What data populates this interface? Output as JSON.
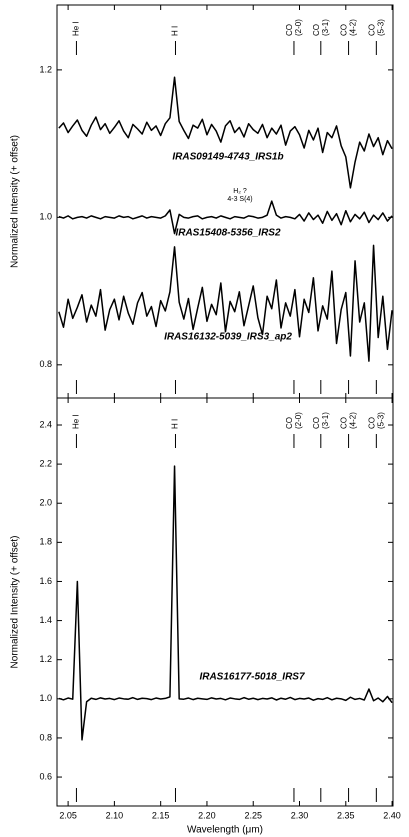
{
  "chart_data": [
    {
      "type": "line",
      "ylabel": "Normalized Intensity (+ offset)",
      "x": [
        2.04,
        2.045,
        2.05,
        2.055,
        2.06,
        2.065,
        2.07,
        2.075,
        2.08,
        2.085,
        2.09,
        2.095,
        2.1,
        2.105,
        2.11,
        2.115,
        2.12,
        2.125,
        2.13,
        2.135,
        2.14,
        2.145,
        2.15,
        2.155,
        2.16,
        2.165,
        2.17,
        2.175,
        2.18,
        2.185,
        2.19,
        2.195,
        2.2,
        2.205,
        2.21,
        2.215,
        2.22,
        2.225,
        2.23,
        2.235,
        2.24,
        2.245,
        2.25,
        2.255,
        2.26,
        2.265,
        2.27,
        2.275,
        2.28,
        2.285,
        2.29,
        2.295,
        2.3,
        2.305,
        2.31,
        2.315,
        2.32,
        2.325,
        2.33,
        2.335,
        2.34,
        2.345,
        2.35,
        2.355,
        2.36,
        2.365,
        2.37,
        2.375,
        2.38,
        2.385,
        2.39,
        2.395,
        2.4
      ],
      "series": [
        {
          "name": "IRAS09149-4743_IRS1b",
          "color": "#000000",
          "values": [
            1.121,
            1.128,
            1.115,
            1.124,
            1.132,
            1.118,
            1.11,
            1.125,
            1.136,
            1.119,
            1.127,
            1.114,
            1.122,
            1.131,
            1.117,
            1.108,
            1.126,
            1.12,
            1.113,
            1.129,
            1.118,
            1.124,
            1.111,
            1.127,
            1.135,
            1.19,
            1.13,
            1.118,
            1.107,
            1.125,
            1.121,
            1.133,
            1.112,
            1.126,
            1.117,
            1.102,
            1.124,
            1.131,
            1.115,
            1.122,
            1.109,
            1.127,
            1.119,
            1.114,
            1.126,
            1.108,
            1.121,
            1.113,
            1.125,
            1.098,
            1.117,
            1.123,
            1.112,
            1.094,
            1.118,
            1.105,
            1.121,
            1.088,
            1.115,
            1.108,
            1.124,
            1.097,
            1.082,
            1.04,
            1.075,
            1.102,
            1.09,
            1.113,
            1.096,
            1.108,
            1.085,
            1.104,
            1.093
          ]
        },
        {
          "name": "IRAS15408-5356_IRS2",
          "color": "#000000",
          "values": [
            1.001,
            0.999,
            1.002,
            0.998,
            1.0,
            1.001,
            0.999,
            1.002,
            1.0,
            0.998,
            1.001,
            1.0,
            0.999,
            1.002,
            1.0,
            1.001,
            0.998,
            1.0,
            1.002,
            0.999,
            1.001,
            1.0,
            0.999,
            1.002,
            1.01,
            0.978,
            1.004,
            1.0,
            0.999,
            1.001,
            1.002,
            0.998,
            1.0,
            1.001,
            0.999,
            1.002,
            1.0,
            0.998,
            1.001,
            1.0,
            0.999,
            1.002,
            1.001,
            0.999,
            1.0,
            1.003,
            1.022,
            1.003,
            0.999,
            1.001,
            1.0,
            0.998,
            1.004,
            0.995,
            1.006,
            0.997,
            1.003,
            0.992,
            1.008,
            0.996,
            1.005,
            0.99,
            1.009,
            0.994,
            1.004,
            0.998,
            1.007,
            0.993,
            1.003,
            0.997,
            1.006,
            0.995,
            1.002
          ]
        },
        {
          "name": "IRAS16132-5039_IRS3_ap2",
          "color": "#000000",
          "values": [
            0.872,
            0.851,
            0.889,
            0.863,
            0.878,
            0.895,
            0.858,
            0.881,
            0.866,
            0.902,
            0.847,
            0.875,
            0.889,
            0.861,
            0.893,
            0.87,
            0.855,
            0.884,
            0.898,
            0.866,
            0.879,
            0.852,
            0.887,
            0.873,
            0.899,
            0.96,
            0.885,
            0.862,
            0.89,
            0.848,
            0.877,
            0.905,
            0.859,
            0.882,
            0.868,
            0.911,
            0.845,
            0.886,
            0.872,
            0.899,
            0.853,
            0.88,
            0.907,
            0.864,
            0.841,
            0.893,
            0.876,
            0.915,
            0.85,
            0.884,
            0.866,
            0.902,
            0.838,
            0.889,
            0.871,
            0.918,
            0.846,
            0.88,
            0.862,
            0.927,
            0.829,
            0.875,
            0.898,
            0.812,
            0.941,
            0.858,
            0.884,
            0.805,
            0.962,
            0.837,
            0.893,
            0.821,
            0.874
          ]
        }
      ],
      "annotations": [
        "H₂ ?",
        "4-3 S(4)"
      ],
      "line_markers": [
        {
          "label": "He I",
          "wavelength": 2.059
        },
        {
          "label": "H I",
          "wavelength": 2.166
        },
        {
          "label": "CO",
          "transition": "(2-0)",
          "wavelength": 2.294
        },
        {
          "label": "CO",
          "transition": "(3-1)",
          "wavelength": 2.323
        },
        {
          "label": "CO",
          "transition": "(4-2)",
          "wavelength": 2.353
        },
        {
          "label": "CO",
          "transition": "(5-3)",
          "wavelength": 2.383
        }
      ],
      "xlim": [
        2.038,
        2.401
      ],
      "ylim": [
        0.755,
        1.288
      ],
      "yticks": [
        0.8,
        {
          "value": 1,
          "label": "1.0"
        },
        1.2
      ]
    },
    {
      "type": "line",
      "ylabel": "Normalized Intensity (+ offset)",
      "xlabel": "Wavelength (μm)",
      "x": [
        2.04,
        2.045,
        2.05,
        2.055,
        2.06,
        2.065,
        2.07,
        2.075,
        2.08,
        2.085,
        2.09,
        2.095,
        2.1,
        2.105,
        2.11,
        2.115,
        2.12,
        2.125,
        2.13,
        2.135,
        2.14,
        2.145,
        2.15,
        2.155,
        2.16,
        2.165,
        2.17,
        2.175,
        2.18,
        2.185,
        2.19,
        2.195,
        2.2,
        2.205,
        2.21,
        2.215,
        2.22,
        2.225,
        2.23,
        2.235,
        2.24,
        2.245,
        2.25,
        2.255,
        2.26,
        2.265,
        2.27,
        2.275,
        2.28,
        2.285,
        2.29,
        2.295,
        2.3,
        2.305,
        2.31,
        2.315,
        2.32,
        2.325,
        2.33,
        2.335,
        2.34,
        2.345,
        2.35,
        2.355,
        2.36,
        2.365,
        2.37,
        2.375,
        2.38,
        2.385,
        2.39,
        2.395,
        2.4
      ],
      "series": [
        {
          "name": "IRAS16177-5018_IRS7",
          "color": "#000000",
          "values": [
            1.002,
            0.995,
            1.004,
            0.998,
            1.6,
            0.79,
            0.985,
            1.003,
            0.997,
            1.005,
            0.999,
            1.002,
            0.996,
            1.004,
            1.0,
            0.998,
            1.006,
            0.997,
            1.003,
            1.001,
            0.996,
            1.004,
            0.999,
            1.002,
            1.01,
            2.19,
            1.0,
            0.998,
            1.004,
            0.996,
            1.003,
            1.0,
            0.997,
            1.005,
            0.999,
            1.002,
            0.995,
            1.004,
            1.0,
            0.997,
            1.006,
            0.998,
            1.003,
            0.996,
            1.002,
            0.999,
            1.005,
            0.994,
            1.003,
            0.998,
            1.007,
            0.996,
            1.002,
            0.999,
            1.004,
            0.993,
            1.001,
            0.997,
            1.006,
            0.995,
            1.003,
            1.0,
            0.992,
            1.008,
            0.997,
            1.002,
            0.994,
            1.05,
            0.99,
            1.004,
            0.985,
            1.012,
            0.98
          ]
        }
      ],
      "line_markers": [
        {
          "label": "He I",
          "wavelength": 2.059
        },
        {
          "label": "H I",
          "wavelength": 2.166
        },
        {
          "label": "CO",
          "transition": "(2-0)",
          "wavelength": 2.294
        },
        {
          "label": "CO",
          "transition": "(3-1)",
          "wavelength": 2.323
        },
        {
          "label": "CO",
          "transition": "(4-2)",
          "wavelength": 2.353
        },
        {
          "label": "CO",
          "transition": "(5-3)",
          "wavelength": 2.383
        }
      ],
      "xlim": [
        2.038,
        2.401
      ],
      "xticks": [
        2.05,
        {
          "value": 2.1,
          "label": "2.10"
        },
        2.15,
        {
          "value": 2.2,
          "label": "2.20"
        },
        2.25,
        {
          "value": 2.3,
          "label": "2.30"
        },
        2.35,
        {
          "value": 2.4,
          "label": "2.40"
        }
      ],
      "ylim": [
        0.452,
        2.538
      ],
      "yticks": [
        0.6,
        0.8,
        {
          "value": 1,
          "label": "1.0"
        },
        1.2,
        1.4,
        1.6,
        1.8,
        {
          "value": 2,
          "label": "2.0"
        },
        2.2,
        2.4
      ]
    }
  ]
}
